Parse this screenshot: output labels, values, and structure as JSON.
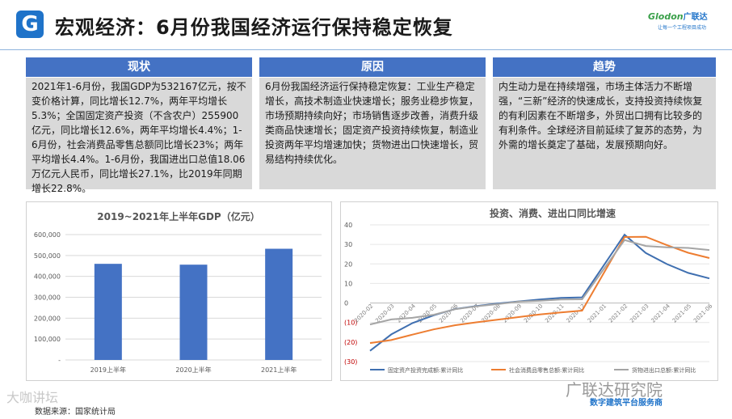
{
  "header": {
    "logo_letter": "G",
    "title": "宏观经济：6月份我国经济运行保持稳定恢复",
    "brand_name": "Glodon",
    "brand_cn": "广联达",
    "brand_slogan": "让每一个工程项目成功"
  },
  "panels": [
    {
      "heading": "现状",
      "body": "2021年1-6月份，我国GDP为532167亿元，按不变价格计算，同比增长12.7%，两年平均增长5.3%；全国固定资产投资（不含农户）255900亿元，同比增长12.6%，两年平均增长4.4%；1-6月份，社会消费品零售总额同比增长23%；两年平均增长4.4%。1-6月份，我国进出口总值18.06万亿元人民币，同比增长27.1%，比2019年同期增长22.8%。"
    },
    {
      "heading": "原因",
      "body": "6月份我国经济运行保持稳定恢复：工业生产稳定增长，高技术制造业快速增长；服务业稳步恢复，市场预期持续向好；市场销售逐步改善，消费升级类商品快速增长；固定资产投资持续恢复，制造业投资两年平均增速加快；货物进出口快速增长，贸易结构持续优化。"
    },
    {
      "heading": "趋势",
      "body": "内生动力是在持续增强，市场主体活力不断增强，“三新”经济的快速成长，支持投资持续恢复的有利因素在不断增多，外贸出口拥有比较多的有利条件。全球经济目前延续了复苏的态势，为外需的增长奠定了基础，发展预期向好。"
    }
  ],
  "chart_data": [
    {
      "type": "bar",
      "title": "2019~2021年上半年GDP（亿元）",
      "categories": [
        "2019上半年",
        "2020上半年",
        "2021上半年"
      ],
      "values": [
        460000,
        456000,
        532167
      ],
      "ylim": [
        0,
        600000
      ],
      "yticks": [
        "600,000",
        "500,000",
        "400,000",
        "300,000",
        "200,000",
        "100,000",
        "-"
      ],
      "grid": true,
      "colors": {
        "bar": "#4472c4"
      }
    },
    {
      "type": "line",
      "title": "投资、消费、进出口同比增速",
      "x": [
        "2020-02",
        "2020-03",
        "2020-04",
        "2020-05",
        "2020-06",
        "2020-07",
        "2020-08",
        "2020-09",
        "2020-10",
        "2020-11",
        "2020-12",
        "2021-01",
        "2021-02",
        "2021-03",
        "2021-04",
        "2021-05",
        "2021-06"
      ],
      "ylim": [
        -30,
        40
      ],
      "yticks": [
        "40",
        "30",
        "20",
        "10",
        "0",
        "(10)",
        "(20)",
        "(30)"
      ],
      "legend_position": "bottom",
      "grid": true,
      "series": [
        {
          "name": "固定资产投资完成额:累计同比",
          "color": "#3f6fb0",
          "values": [
            -24.5,
            -16.1,
            -10.3,
            -6.3,
            -3.1,
            -1.6,
            -0.3,
            0.8,
            1.8,
            2.6,
            2.9,
            null,
            35.0,
            25.6,
            19.9,
            15.4,
            12.6
          ]
        },
        {
          "name": "社会消费品零售总额:累计同比",
          "color": "#ed7d31",
          "values": [
            -20.5,
            -19.0,
            -16.2,
            -13.5,
            -11.4,
            -9.9,
            -8.6,
            -7.2,
            -5.9,
            -4.8,
            -3.9,
            null,
            33.8,
            33.9,
            29.6,
            25.7,
            23.0
          ]
        },
        {
          "name": "货物进出口总额:累计同比",
          "color": "#a5a5a5",
          "values": [
            -11.0,
            -8.4,
            -7.6,
            -6.0,
            -3.2,
            -1.7,
            -0.6,
            0.7,
            1.1,
            1.8,
            1.9,
            null,
            32.2,
            29.2,
            28.5,
            28.2,
            27.1
          ]
        }
      ]
    }
  ],
  "source": "数据来源：国家统计局",
  "watermark_left": "大咖讲坛",
  "watermark_right": "广联达研究院",
  "watermark_sub": "数字建筑平台服务商"
}
